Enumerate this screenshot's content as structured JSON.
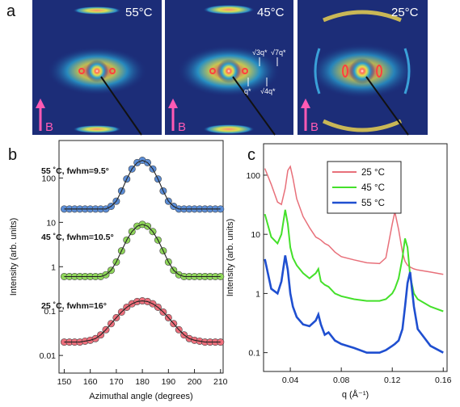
{
  "panel_labels": [
    "a",
    "b",
    "c"
  ],
  "images": [
    {
      "temperature": "55°C",
      "field": "B"
    },
    {
      "temperature": "45°C",
      "field": "B"
    },
    {
      "temperature": "25°C",
      "field": "B"
    }
  ],
  "image_annotations": [
    "√3q*",
    "√7q*",
    "q*",
    "√4q*"
  ],
  "chart_data": [
    {
      "type": "scatter",
      "xlabel": "Azimuthal angle (degrees)",
      "ylabel": "Intensity (arb. units)",
      "log_y": true,
      "xlim": [
        148,
        211
      ],
      "ylim": [
        0.004,
        700
      ],
      "xticks": [
        150,
        160,
        170,
        180,
        190,
        200,
        210
      ],
      "yticks": [
        0.01,
        0.1,
        1,
        10,
        100
      ],
      "fit_color": "#222222",
      "x": [
        150,
        152,
        154,
        156,
        158,
        160,
        162,
        164,
        166,
        168,
        170,
        172,
        174,
        176,
        178,
        180,
        182,
        184,
        186,
        188,
        190,
        192,
        194,
        196,
        198,
        200,
        202,
        204,
        206,
        208,
        210
      ],
      "series": [
        {
          "name": "55 ˚C, fwhm=9.5°",
          "color": "#5b8dd6",
          "label_color": "#2a5cb0",
          "values": [
            20,
            20,
            20,
            20,
            20,
            20,
            20,
            20,
            20,
            23,
            30,
            51,
            95,
            160,
            222,
            250,
            222,
            160,
            95,
            51,
            30,
            23,
            20,
            20,
            20,
            20,
            20,
            20,
            20,
            20,
            20
          ]
        },
        {
          "name": "45 ˚C, fwhm=10.5°",
          "color": "#8fd65a",
          "label_color": "#5cb82e",
          "values": [
            0.6,
            0.6,
            0.6,
            0.6,
            0.6,
            0.6,
            0.6,
            0.6,
            0.66,
            0.83,
            1.28,
            2.28,
            4.0,
            6.2,
            8.2,
            9,
            8.2,
            6.2,
            4.0,
            2.28,
            1.28,
            0.83,
            0.66,
            0.6,
            0.6,
            0.6,
            0.6,
            0.6,
            0.6,
            0.6,
            0.6
          ]
        },
        {
          "name": "25 ˚C, fwhm=16°",
          "color": "#ee6f7c",
          "label_color": "#5a1a22",
          "values": [
            0.02,
            0.02,
            0.02,
            0.02,
            0.021,
            0.022,
            0.024,
            0.029,
            0.038,
            0.052,
            0.071,
            0.095,
            0.122,
            0.146,
            0.164,
            0.17,
            0.164,
            0.146,
            0.122,
            0.095,
            0.071,
            0.052,
            0.038,
            0.029,
            0.024,
            0.022,
            0.021,
            0.02,
            0.02,
            0.02,
            0.02
          ]
        }
      ]
    },
    {
      "type": "line",
      "xlabel": "q (Å⁻¹)",
      "ylabel": "Intensity (arb. units)",
      "log_y": true,
      "xlim": [
        0.019,
        0.163
      ],
      "ylim": [
        0.048,
        340
      ],
      "xticks": [
        0.04,
        0.08,
        0.12,
        0.16
      ],
      "yticks": [
        0.1,
        1,
        10,
        100
      ],
      "legend": "upper right",
      "x": [
        0.02,
        0.025,
        0.03,
        0.033,
        0.036,
        0.038,
        0.04,
        0.042,
        0.045,
        0.05,
        0.055,
        0.06,
        0.062,
        0.064,
        0.067,
        0.07,
        0.075,
        0.08,
        0.09,
        0.1,
        0.11,
        0.115,
        0.12,
        0.122,
        0.125,
        0.128,
        0.13,
        0.132,
        0.134,
        0.137,
        0.14,
        0.15,
        0.16
      ],
      "series": [
        {
          "name": "25 °C",
          "color": "#e8707a",
          "values": [
            130,
            70,
            35,
            32,
            60,
            120,
            140,
            90,
            40,
            20,
            13,
            9,
            8.5,
            8,
            7,
            6.5,
            5,
            4.2,
            3.7,
            3.3,
            3.2,
            4,
            15,
            24,
            12,
            5,
            3.5,
            3,
            2.8,
            2.6,
            2.5,
            2.3,
            2.1
          ]
        },
        {
          "name": "45 °C",
          "color": "#44e02a",
          "values": [
            22,
            9,
            7,
            10,
            26,
            15,
            6,
            4,
            3,
            2.2,
            1.8,
            2.2,
            2.6,
            1.6,
            1.4,
            1.3,
            1.0,
            0.9,
            0.8,
            0.75,
            0.75,
            0.8,
            1.0,
            1.2,
            1.8,
            4,
            8.5,
            6,
            2,
            1.0,
            0.8,
            0.6,
            0.5
          ]
        },
        {
          "name": "55 °C",
          "color": "#1f4fd0",
          "values": [
            3.8,
            1.2,
            1.0,
            1.6,
            4.4,
            2.5,
            1.0,
            0.6,
            0.4,
            0.3,
            0.28,
            0.35,
            0.44,
            0.3,
            0.2,
            0.22,
            0.16,
            0.14,
            0.12,
            0.1,
            0.1,
            0.11,
            0.13,
            0.14,
            0.16,
            0.25,
            0.6,
            1.5,
            2.3,
            0.6,
            0.25,
            0.13,
            0.1
          ]
        }
      ]
    }
  ]
}
